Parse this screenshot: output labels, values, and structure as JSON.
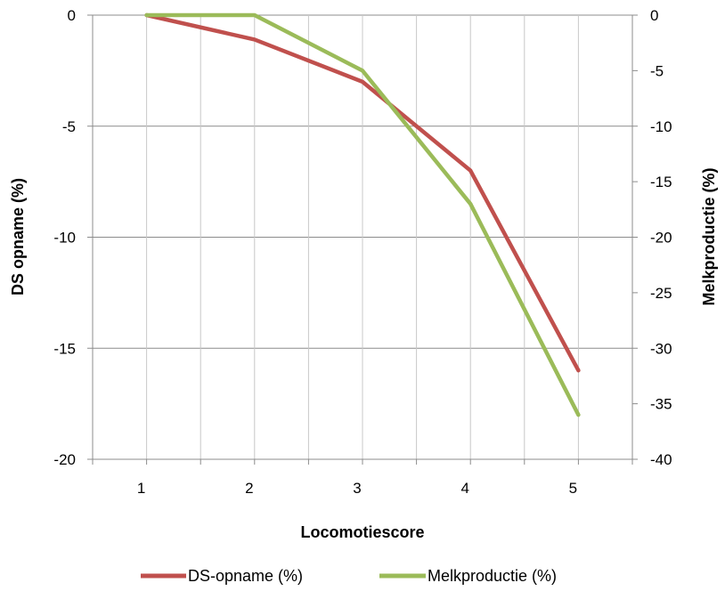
{
  "chart_data": {
    "type": "line",
    "title": "",
    "xlabel": "Locomotiescore",
    "ylabel": "DS opname (%)",
    "ylabel_right": "Melkproductie (%)",
    "categories": [
      "1",
      "2",
      "3",
      "4",
      "5"
    ],
    "ylim": [
      -20,
      0
    ],
    "ylim_right": [
      -40,
      0
    ],
    "yticks": [
      "0",
      "-5",
      "-10",
      "-15",
      "-20"
    ],
    "yticks_right": [
      "0",
      "-5",
      "-10",
      "-15",
      "-20",
      "-25",
      "-30",
      "-35",
      "-40"
    ],
    "grid": true,
    "legend_position": "bottom",
    "series": [
      {
        "name": "DS-opname (%)",
        "axis": "left",
        "color": "#c0504d",
        "values": [
          0,
          -1.1,
          -3,
          -7,
          -16
        ]
      },
      {
        "name": "Melkproductie (%)",
        "axis": "right",
        "color": "#9bbb59",
        "values": [
          0,
          0,
          -5,
          -17,
          -36
        ]
      }
    ]
  }
}
